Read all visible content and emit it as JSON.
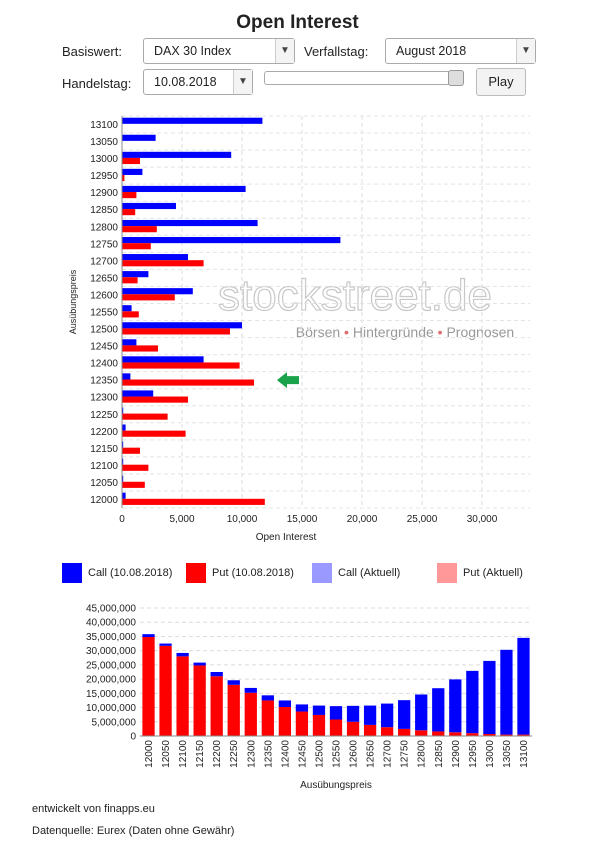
{
  "page_title": "Open Interest",
  "controls": {
    "basiswert_label": "Basiswert:",
    "basiswert_value": "DAX 30 Index",
    "verfallstag_label": "Verfallstag:",
    "verfallstag_value": "August 2018",
    "handelstag_label": "Handelstag:",
    "handelstag_value": "10.08.2018",
    "slider_position": 1.0,
    "play_label": "Play"
  },
  "watermark": {
    "brand": "stockstreet.de",
    "tagline_parts": [
      "Börsen",
      "Hintergründe",
      "Prognosen"
    ],
    "separator": "•"
  },
  "colors": {
    "call": "#0000ff",
    "put": "#ff0000",
    "call_current": "#9999ff",
    "put_current": "#ff9999",
    "arrow": "#1aa34a"
  },
  "legend": {
    "items": [
      {
        "label": "Call (10.08.2018)",
        "color": "#0000ff"
      },
      {
        "label": "Put (10.08.2018)",
        "color": "#ff0000"
      },
      {
        "label": "Call (Aktuell)",
        "color": "#9999ff"
      },
      {
        "label": "Put (Aktuell)",
        "color": "#ff9999"
      }
    ]
  },
  "footer": {
    "developed_by": "entwickelt von finapps.eu",
    "source": "Datenquelle: Eurex (Daten ohne Gewähr)"
  },
  "chart_data": [
    {
      "type": "bar",
      "orientation": "horizontal",
      "xlabel": "Open Interest",
      "ylabel": "Ausübungspreis",
      "xlim": [
        0,
        34000
      ],
      "xticks": [
        0,
        5000,
        10000,
        15000,
        20000,
        25000,
        30000
      ],
      "xtick_labels": [
        "0",
        "5,000",
        "10,000",
        "15,000",
        "20,000",
        "25,000",
        "30,000"
      ],
      "grid": true,
      "highlight_strike": "12350",
      "categories": [
        "13100",
        "13050",
        "13000",
        "12950",
        "12900",
        "12850",
        "12800",
        "12750",
        "12700",
        "12650",
        "12600",
        "12550",
        "12500",
        "12450",
        "12400",
        "12350",
        "12300",
        "12250",
        "12200",
        "12150",
        "12100",
        "12050",
        "12000"
      ],
      "series": [
        {
          "name": "Call (10.08.2018)",
          "values": [
            11700,
            2800,
            9100,
            1700,
            10300,
            4500,
            11300,
            18200,
            5500,
            2200,
            5900,
            800,
            10000,
            1200,
            6800,
            700,
            2600,
            100,
            300,
            100,
            100,
            100,
            300
          ]
        },
        {
          "name": "Put (10.08.2018)",
          "values": [
            0,
            0,
            1500,
            200,
            1200,
            1100,
            2900,
            2400,
            6800,
            1300,
            4400,
            1400,
            9000,
            3000,
            9800,
            11000,
            5500,
            3800,
            5300,
            1500,
            2200,
            1900,
            11900
          ]
        }
      ]
    },
    {
      "type": "bar",
      "stacked": true,
      "xlabel": "Ausübungspreis",
      "ylabel": "",
      "ylim": [
        0,
        45000000
      ],
      "yticks": [
        0,
        5000000,
        10000000,
        15000000,
        20000000,
        25000000,
        30000000,
        35000000,
        40000000,
        45000000
      ],
      "ytick_labels": [
        "0",
        "5,000,000",
        "10,000,000",
        "15,000,000",
        "20,000,000",
        "25,000,000",
        "30,000,000",
        "35,000,000",
        "40,000,000",
        "45,000,000"
      ],
      "grid": true,
      "categories": [
        "12000",
        "12050",
        "12100",
        "12150",
        "12200",
        "12250",
        "12300",
        "12350",
        "12400",
        "12450",
        "12500",
        "12550",
        "12600",
        "12650",
        "12700",
        "12750",
        "12800",
        "12850",
        "12900",
        "12950",
        "13000",
        "13050",
        "13100"
      ],
      "series": [
        {
          "name": "Put (10.08.2018)",
          "values": [
            34800000,
            31700000,
            28000000,
            24800000,
            21000000,
            18000000,
            15200000,
            12500000,
            10200000,
            8600000,
            7400000,
            5800000,
            5000000,
            3900000,
            3100000,
            2500000,
            2000000,
            1600000,
            1300000,
            1000000,
            700000,
            500000,
            500000
          ]
        },
        {
          "name": "Call (10.08.2018)",
          "values": [
            1000000,
            800000,
            1200000,
            1000000,
            1500000,
            1600000,
            1700000,
            1800000,
            2300000,
            2500000,
            3300000,
            4700000,
            5600000,
            6800000,
            8300000,
            10100000,
            12600000,
            15200000,
            18600000,
            21900000,
            25700000,
            29800000,
            34000000
          ]
        }
      ]
    }
  ]
}
